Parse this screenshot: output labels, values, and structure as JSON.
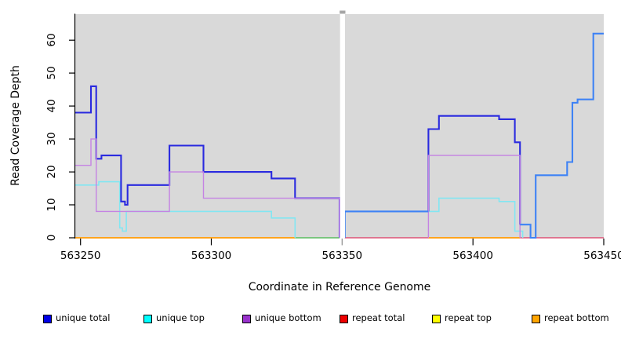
{
  "chart_data": {
    "type": "line",
    "title": "",
    "xlabel": "Coordinate in Reference Genome",
    "ylabel": "Read Coverage Depth",
    "xlim": [
      563248,
      563450
    ],
    "ylim": [
      0,
      67.9
    ],
    "x_ticks": [
      563250,
      563300,
      563350,
      563400,
      563450
    ],
    "y_ticks": [
      0,
      10,
      20,
      30,
      40,
      50,
      60
    ],
    "grid": false,
    "panel_bg": "#D9D9D9",
    "gap_region": {
      "x1": 563349.2,
      "x2": 563351.1,
      "color": "#FFFFFF"
    },
    "legend_position": "bottom",
    "legend": [
      {
        "label": "unique total",
        "color": "#0000E6"
      },
      {
        "label": "unique top",
        "color": "#00FFFF"
      },
      {
        "label": "unique bottom",
        "color": "#9932CC"
      },
      {
        "label": "repeat total",
        "color": "#EE0000"
      },
      {
        "label": "repeat top",
        "color": "#FFFF00"
      },
      {
        "label": "repeat bottom",
        "color": "#FFA500"
      }
    ],
    "series": [
      {
        "name": "repeat-total-right-of-gap",
        "legend": "repeat total",
        "color": "#DE5377",
        "width": 1.6,
        "steps": [
          [
            563351,
            0
          ],
          [
            563383,
            0
          ]
        ]
      },
      {
        "name": "repeat-total-far-right",
        "legend": "repeat total",
        "color": "#DE5377",
        "width": 1.6,
        "steps": [
          [
            563418,
            0
          ],
          [
            563450,
            0
          ]
        ]
      },
      {
        "name": "repeat-top-left-of-gap",
        "legend": "repeat top",
        "color": "#6CC070",
        "width": 1.8,
        "steps": [
          [
            563332,
            0
          ],
          [
            563349,
            0
          ]
        ]
      },
      {
        "name": "repeat-bottom-left",
        "legend": "repeat bottom",
        "color": "#FFA41E",
        "width": 2,
        "steps": [
          [
            563248,
            0
          ],
          [
            563332,
            0
          ]
        ]
      },
      {
        "name": "repeat-bottom-mid-right",
        "legend": "repeat bottom",
        "color": "#FFA41E",
        "width": 2,
        "steps": [
          [
            563383,
            0
          ],
          [
            563418,
            0
          ]
        ]
      },
      {
        "name": "unique-top-left",
        "legend": "unique top",
        "color": "#82E6F2",
        "width": 1.6,
        "steps": [
          [
            563248,
            16
          ],
          [
            563257,
            17
          ],
          [
            563265,
            3
          ],
          [
            563266,
            2
          ],
          [
            563267.5,
            8
          ],
          [
            563323,
            6
          ],
          [
            563332,
            0
          ]
        ]
      },
      {
        "name": "unique-top-right",
        "legend": "unique top",
        "color": "#82E6F2",
        "width": 1.6,
        "steps": [
          [
            563351,
            0
          ],
          [
            563351,
            8
          ],
          [
            563387,
            12
          ],
          [
            563410,
            11
          ],
          [
            563416,
            2
          ],
          [
            563419,
            0
          ]
        ]
      },
      {
        "name": "unique-total-left",
        "legend": "unique total",
        "color": "#2A2ADF",
        "width": 2.1,
        "steps": [
          [
            563248,
            38
          ],
          [
            563254,
            46
          ],
          [
            563256,
            24
          ],
          [
            563258,
            25
          ],
          [
            563265.5,
            11
          ],
          [
            563267,
            10
          ],
          [
            563268,
            16
          ],
          [
            563284,
            28
          ],
          [
            563297,
            20
          ],
          [
            563323,
            18
          ],
          [
            563332,
            12
          ],
          [
            563349,
            12
          ],
          [
            563349,
            0
          ]
        ]
      },
      {
        "name": "unique-total-mid-hump",
        "legend": "unique total",
        "color": "#2A2ADF",
        "width": 2.1,
        "steps": [
          [
            563383,
            8
          ],
          [
            563383,
            33
          ],
          [
            563387,
            37
          ],
          [
            563410,
            36
          ],
          [
            563416,
            29
          ],
          [
            563418,
            4
          ]
        ]
      },
      {
        "name": "unique-bottom-left",
        "legend": "unique bottom",
        "color": "#C583E3",
        "width": 1.4,
        "steps": [
          [
            563248,
            22
          ],
          [
            563254,
            30
          ],
          [
            563256,
            8
          ],
          [
            563284,
            20
          ],
          [
            563297,
            12
          ],
          [
            563349,
            12
          ],
          [
            563349,
            0
          ]
        ]
      },
      {
        "name": "unique-bottom-right",
        "legend": "unique bottom",
        "color": "#C583E3",
        "width": 1.4,
        "steps": [
          [
            563383,
            0
          ],
          [
            563383,
            25
          ],
          [
            563418,
            25
          ],
          [
            563418,
            0
          ]
        ]
      },
      {
        "name": "unique-total-right-plateau8",
        "legend": "unique total",
        "color": "#3E82F5",
        "width": 2.1,
        "steps": [
          [
            563351,
            0
          ],
          [
            563351,
            8
          ],
          [
            563383,
            8
          ]
        ]
      },
      {
        "name": "unique-total-far-right",
        "legend": "unique total",
        "color": "#3E82F5",
        "width": 2.1,
        "steps": [
          [
            563418,
            4
          ],
          [
            563422,
            0
          ],
          [
            563424,
            19
          ],
          [
            563436,
            23
          ],
          [
            563438,
            41
          ],
          [
            563440,
            42
          ],
          [
            563446,
            62
          ],
          [
            563450,
            62
          ]
        ]
      }
    ]
  }
}
